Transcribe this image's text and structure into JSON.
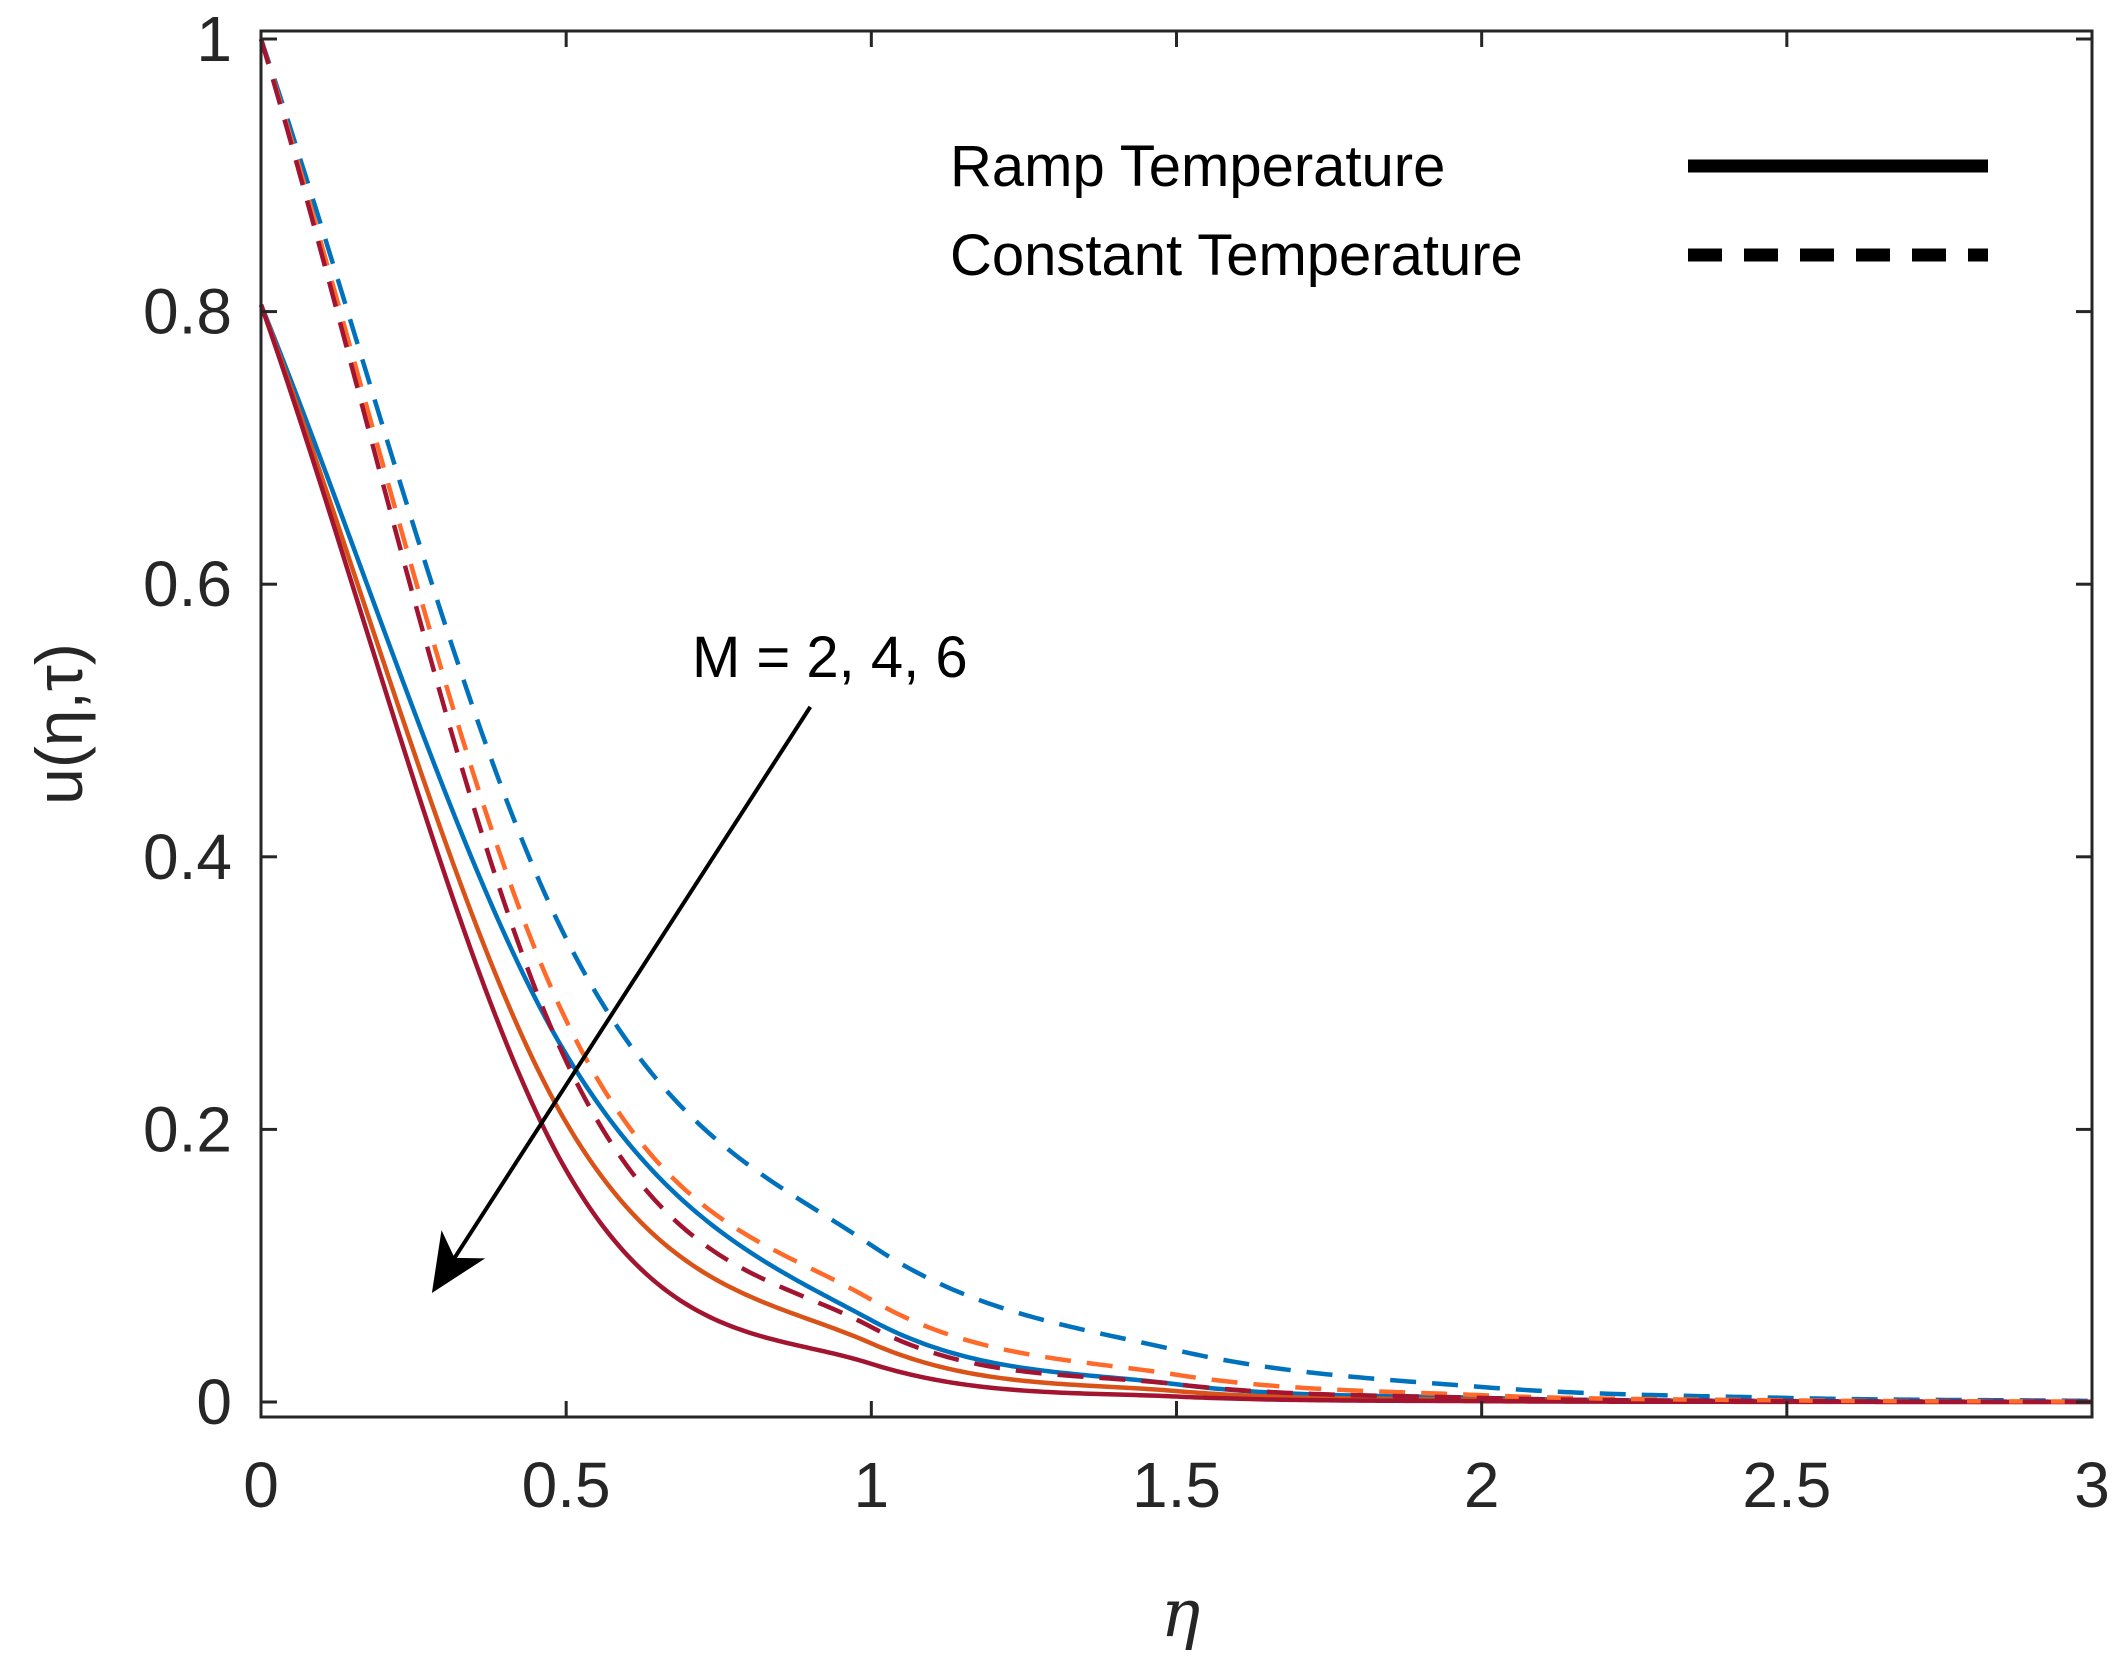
{
  "chart_data": {
    "type": "line",
    "title": "",
    "xlabel": "η",
    "ylabel": "u(η,τ)",
    "xlim": [
      0,
      3
    ],
    "ylim": [
      0,
      1
    ],
    "x_ticks": [
      0,
      0.5,
      1,
      1.5,
      2,
      2.5,
      3
    ],
    "x_tick_labels": [
      "0",
      "0.5",
      "1",
      "1.5",
      "2",
      "2.5",
      "3"
    ],
    "y_ticks": [
      0,
      0.2,
      0.4,
      0.6,
      0.8,
      1
    ],
    "y_tick_labels": [
      "0",
      "0.2",
      "0.4",
      "0.6",
      "0.8",
      "1"
    ],
    "grid": false,
    "legend": {
      "position": "top-right",
      "entries": [
        {
          "label": "Ramp Temperature",
          "style": "solid",
          "color": "#000000"
        },
        {
          "label": "Constant Temperature",
          "style": "dashed",
          "color": "#000000"
        }
      ]
    },
    "annotations": [
      {
        "text": "M = 2, 4, 6",
        "arrow_from": [
          0.9,
          0.51
        ],
        "arrow_to": [
          0.28,
          0.08
        ]
      }
    ],
    "series": [
      {
        "name": "Ramp Temperature, M = 2",
        "style": "solid",
        "color": "#0072BD",
        "u0": 0.805,
        "x": [
          0.5,
          1.0,
          1.5,
          2.0,
          2.5,
          3.0
        ],
        "values": [
          0.255,
          0.06,
          0.013,
          0.003,
          0.0006,
          0.0001
        ]
      },
      {
        "name": "Ramp Temperature, M = 4",
        "style": "solid",
        "color": "#D95319",
        "u0": 0.805,
        "x": [
          0.5,
          1.0,
          1.5,
          2.0,
          2.5,
          3.0
        ],
        "values": [
          0.205,
          0.043,
          0.008,
          0.0016,
          0.0003,
          0.0001
        ]
      },
      {
        "name": "Ramp Temperature, M = 6",
        "style": "solid",
        "color": "#A2142F",
        "u0": 0.805,
        "x": [
          0.5,
          1.0,
          1.5,
          2.0,
          2.5,
          3.0
        ],
        "values": [
          0.17,
          0.028,
          0.004,
          0.0006,
          0.0001,
          0.0
        ]
      },
      {
        "name": "Constant Temperature, M = 2",
        "style": "dashed",
        "color": "#0072BD",
        "u0": 1.0,
        "x": [
          0.5,
          1.0,
          1.5,
          2.0,
          2.5,
          3.0
        ],
        "values": [
          0.34,
          0.115,
          0.038,
          0.011,
          0.003,
          0.0008
        ]
      },
      {
        "name": "Constant Temperature, M = 4",
        "style": "dashed",
        "color": "#FF6A2A",
        "u0": 1.0,
        "x": [
          0.5,
          1.0,
          1.5,
          2.0,
          2.5,
          3.0
        ],
        "values": [
          0.28,
          0.075,
          0.02,
          0.005,
          0.0012,
          0.0003
        ]
      },
      {
        "name": "Constant Temperature, M = 6",
        "style": "dashed",
        "color": "#A2142F",
        "u0": 1.0,
        "x": [
          0.5,
          1.0,
          1.5,
          2.0,
          2.5,
          3.0
        ],
        "values": [
          0.25,
          0.055,
          0.013,
          0.003,
          0.0007,
          0.0002
        ]
      }
    ]
  }
}
